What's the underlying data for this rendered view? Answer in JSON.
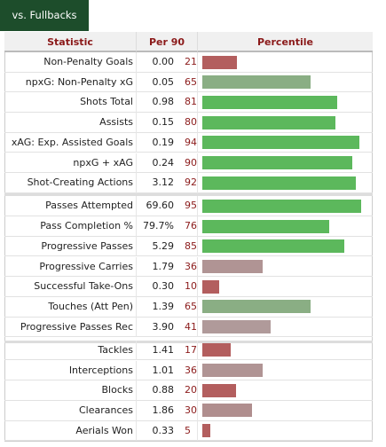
{
  "tab": "vs. Fullbacks",
  "header": {
    "statistic": "Statistic",
    "per90": "Per 90",
    "percentile": "Percentile"
  },
  "groups": [
    {
      "rows": [
        {
          "statistic": "Non-Penalty Goals",
          "per90": "0.00",
          "percentile": 21,
          "color": "#b35e5e"
        },
        {
          "statistic": "npxG: Non-Penalty xG",
          "per90": "0.05",
          "percentile": 65,
          "color": "#8aae84"
        },
        {
          "statistic": "Shots Total",
          "per90": "0.98",
          "percentile": 81,
          "color": "#5cb85c"
        },
        {
          "statistic": "Assists",
          "per90": "0.15",
          "percentile": 80,
          "color": "#5cb85c"
        },
        {
          "statistic": "xAG: Exp. Assisted Goals",
          "per90": "0.19",
          "percentile": 94,
          "color": "#5cb85c"
        },
        {
          "statistic": "npxG + xAG",
          "per90": "0.24",
          "percentile": 90,
          "color": "#5cb85c"
        },
        {
          "statistic": "Shot-Creating Actions",
          "per90": "3.12",
          "percentile": 92,
          "color": "#5cb85c"
        }
      ]
    },
    {
      "rows": [
        {
          "statistic": "Passes Attempted",
          "per90": "69.60",
          "percentile": 95,
          "color": "#5cb85c"
        },
        {
          "statistic": "Pass Completion %",
          "per90": "79.7%",
          "percentile": 76,
          "color": "#5cb85c"
        },
        {
          "statistic": "Progressive Passes",
          "per90": "5.29",
          "percentile": 85,
          "color": "#5cb85c"
        },
        {
          "statistic": "Progressive Carries",
          "per90": "1.79",
          "percentile": 36,
          "color": "#b09494"
        },
        {
          "statistic": "Successful Take-Ons",
          "per90": "0.30",
          "percentile": 10,
          "color": "#b35e5e"
        },
        {
          "statistic": "Touches (Att Pen)",
          "per90": "1.39",
          "percentile": 65,
          "color": "#8aae84"
        },
        {
          "statistic": "Progressive Passes Rec",
          "per90": "3.90",
          "percentile": 41,
          "color": "#b09a9a"
        }
      ]
    },
    {
      "rows": [
        {
          "statistic": "Tackles",
          "per90": "1.41",
          "percentile": 17,
          "color": "#b35e5e"
        },
        {
          "statistic": "Interceptions",
          "per90": "1.01",
          "percentile": 36,
          "color": "#b09494"
        },
        {
          "statistic": "Blocks",
          "per90": "0.88",
          "percentile": 20,
          "color": "#b35e5e"
        },
        {
          "statistic": "Clearances",
          "per90": "1.86",
          "percentile": 30,
          "color": "#b08e8e"
        },
        {
          "statistic": "Aerials Won",
          "per90": "0.33",
          "percentile": 5,
          "color": "#b35e5e"
        }
      ]
    }
  ]
}
